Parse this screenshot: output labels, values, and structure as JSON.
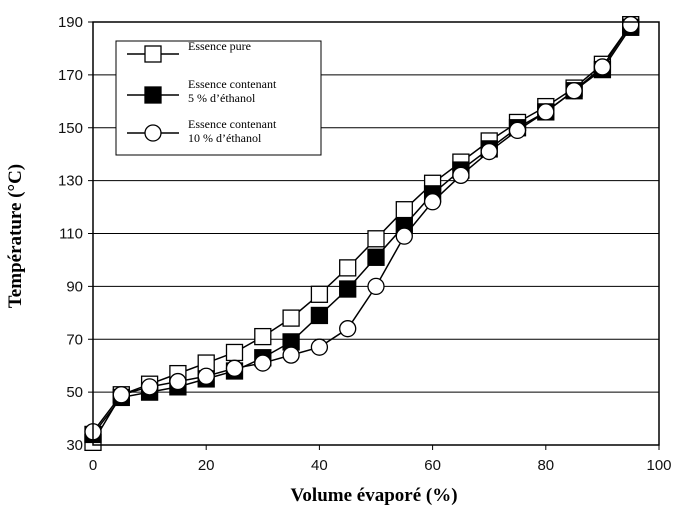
{
  "chart_data": {
    "type": "line",
    "xlabel": "Volume évaporé (%)",
    "ylabel": "Température (°C)",
    "xlim": [
      0,
      100
    ],
    "ylim": [
      30,
      190
    ],
    "x_ticks": [
      "0",
      "20",
      "40",
      "60",
      "80",
      "100"
    ],
    "y_ticks": [
      "30",
      "50",
      "70",
      "90",
      "110",
      "130",
      "150",
      "170",
      "190"
    ],
    "grid": "horizontal",
    "legend_position": "top-left",
    "x": [
      0,
      5,
      10,
      15,
      20,
      25,
      30,
      35,
      40,
      45,
      50,
      55,
      60,
      65,
      70,
      75,
      80,
      85,
      90,
      95
    ],
    "series": [
      {
        "name": "Essence pure",
        "marker": "open-square",
        "values": [
          31,
          49,
          53,
          57,
          61,
          65,
          71,
          78,
          87,
          97,
          108,
          119,
          129,
          137,
          145,
          152,
          158,
          165,
          174,
          189
        ]
      },
      {
        "name_lines": [
          "Essence contenant",
          "5 % d’éthanol"
        ],
        "marker": "filled-square",
        "values": [
          34,
          48,
          50,
          52,
          55,
          58,
          63,
          69,
          79,
          89,
          101,
          113,
          125,
          134,
          142,
          150,
          156,
          164,
          172,
          188
        ]
      },
      {
        "name_lines": [
          "Essence contenant",
          "10 % d’éthanol"
        ],
        "marker": "open-circle",
        "values": [
          35,
          49,
          52,
          54,
          56,
          59,
          61,
          64,
          67,
          74,
          90,
          109,
          122,
          132,
          141,
          149,
          156,
          164,
          173,
          189
        ]
      }
    ]
  }
}
